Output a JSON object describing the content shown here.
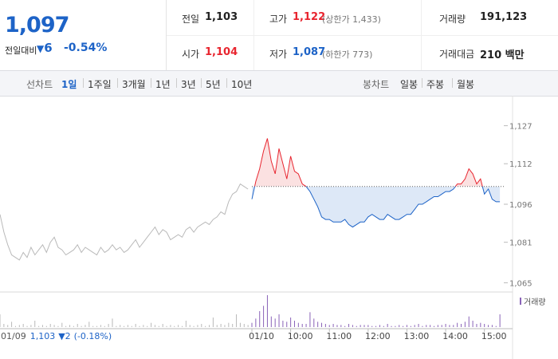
{
  "quote": {
    "price": "1,097",
    "change_label": "전일대비",
    "change": "6",
    "change_pct": "-0.54%"
  },
  "stats": {
    "prev_close": {
      "label": "전일",
      "value": "1,103"
    },
    "high": {
      "label": "고가",
      "value": "1,122",
      "note": "(상한가 1,433)"
    },
    "volume": {
      "label": "거래량",
      "value": "191,123"
    },
    "open": {
      "label": "시가",
      "value": "1,104"
    },
    "low": {
      "label": "저가",
      "value": "1,087",
      "note": "(하한가 773)"
    },
    "amount": {
      "label": "거래대금",
      "value": "210 백만"
    }
  },
  "tabs": {
    "line_label": "선차트",
    "line_tabs": [
      "1일",
      "1주일",
      "3개월",
      "1년",
      "3년",
      "5년",
      "10년"
    ],
    "selected": 0,
    "candle_label": "봉차트",
    "candle_tabs": [
      "일봉",
      "주봉",
      "월봉"
    ]
  },
  "footer": {
    "date": "01/09",
    "price": "1,103",
    "change": "2",
    "change_pct": "(-0.18%)"
  },
  "chart_data": {
    "type": "line",
    "ylim": [
      1062,
      1136
    ],
    "yticks": [
      {
        "value": 1065,
        "label": "1,065"
      },
      {
        "value": 1081,
        "label": "1,081"
      },
      {
        "value": 1096,
        "label": "1,096"
      },
      {
        "value": 1112,
        "label": "1,112"
      },
      {
        "value": 1127,
        "label": "1,127"
      }
    ],
    "xlim": [
      0,
      130
    ],
    "xticks": [
      {
        "value": 65,
        "label": "01/10"
      },
      {
        "value": 75,
        "label": "10:00"
      },
      {
        "value": 85,
        "label": "11:00"
      },
      {
        "value": 95,
        "label": "12:00"
      },
      {
        "value": 105,
        "label": "13:00"
      },
      {
        "value": 115,
        "label": "14:00"
      },
      {
        "value": 125,
        "label": "15:00"
      }
    ],
    "reference": 1103,
    "up_color": "#e8252f",
    "down_color": "#1d63c7",
    "prev_color": "#b9b9b9",
    "volume_color": "#8a63b8",
    "volume_label": "거래량",
    "series": [
      {
        "values": [
          1092,
          1085,
          1080,
          1076,
          1075,
          1074,
          1077,
          1075,
          1079,
          1076,
          1078,
          1080,
          1077,
          1081,
          1083,
          1079,
          1078,
          1076,
          1077,
          1078,
          1080,
          1077,
          1079,
          1078,
          1077,
          1076,
          1079,
          1077,
          1078,
          1080,
          1078,
          1079,
          1077,
          1078,
          1080,
          1082,
          1079,
          1081,
          1083,
          1085,
          1087,
          1084,
          1086,
          1085,
          1082,
          1083,
          1084,
          1083,
          1086,
          1087,
          1085,
          1087,
          1088,
          1089,
          1088,
          1090,
          1091,
          1093,
          1092,
          1097,
          1100,
          1101,
          1104,
          1103,
          1102
        ],
        "volumes": [
          12,
          3,
          2,
          5,
          1,
          2,
          3,
          1,
          2,
          6,
          1,
          2,
          1,
          3,
          2,
          1,
          4,
          1,
          2,
          1,
          3,
          1,
          2,
          5,
          1,
          1,
          2,
          1,
          3,
          8,
          1,
          2,
          1,
          2,
          1,
          3,
          1,
          2,
          1,
          4,
          2,
          1,
          3,
          1,
          2,
          1,
          2,
          1,
          6,
          2,
          1,
          2,
          3,
          1,
          2,
          9,
          2,
          3,
          2,
          4,
          3,
          12,
          4,
          3,
          2
        ]
      },
      {
        "values": [
          1098,
          1105,
          1110,
          1117,
          1122,
          1113,
          1108,
          1118,
          1112,
          1106,
          1115,
          1109,
          1108,
          1104,
          1103,
          1101,
          1098,
          1095,
          1091,
          1090,
          1090,
          1089,
          1089,
          1089,
          1090,
          1088,
          1087,
          1088,
          1089,
          1089,
          1091,
          1092,
          1091,
          1090,
          1090,
          1092,
          1091,
          1090,
          1090,
          1091,
          1092,
          1092,
          1094,
          1096,
          1096,
          1097,
          1098,
          1099,
          1099,
          1100,
          1101,
          1101,
          1102,
          1104,
          1104,
          1106,
          1110,
          1108,
          1104,
          1106,
          1100,
          1102,
          1098,
          1097,
          1097
        ],
        "volumes": [
          4,
          8,
          15,
          20,
          30,
          10,
          8,
          12,
          6,
          5,
          9,
          6,
          4,
          3,
          3,
          14,
          8,
          5,
          4,
          3,
          2,
          3,
          2,
          2,
          1,
          3,
          2,
          1,
          2,
          2,
          2,
          1,
          1,
          2,
          1,
          3,
          1,
          1,
          2,
          1,
          2,
          1,
          2,
          3,
          1,
          2,
          2,
          1,
          2,
          2,
          3,
          2,
          2,
          4,
          3,
          5,
          10,
          6,
          3,
          4,
          3,
          2,
          2,
          1,
          12
        ]
      }
    ]
  }
}
